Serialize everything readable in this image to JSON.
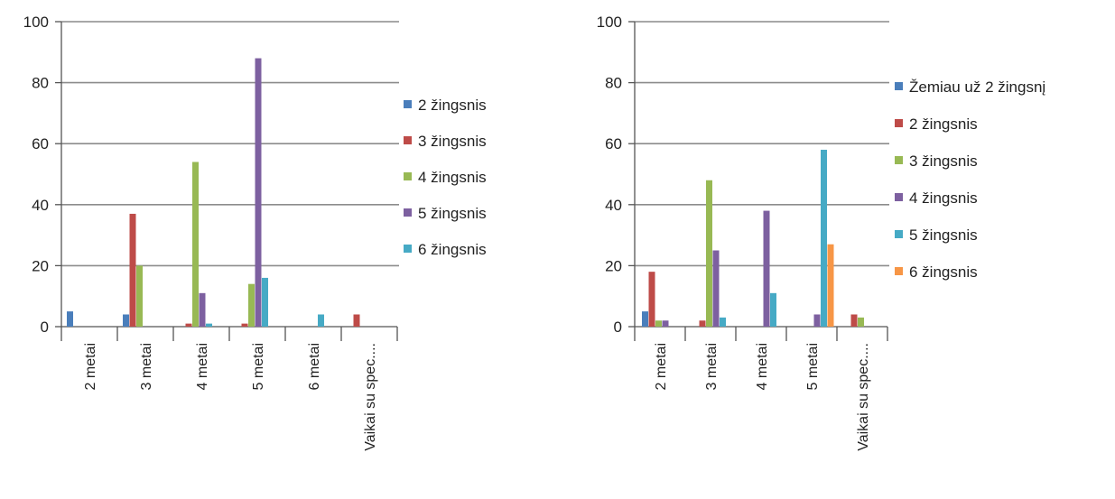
{
  "chart_data": [
    {
      "type": "bar",
      "categories": [
        "2 metai",
        "3 metai",
        "4 metai",
        "5 metai",
        "6 metai",
        "Vaikai su spec...."
      ],
      "y_ticks": [
        "0",
        "20",
        "40",
        "60",
        "80",
        "100"
      ],
      "ylim": [
        0,
        100
      ],
      "grid": true,
      "legend_position": "right",
      "series": [
        {
          "name": "2 žingsnis",
          "color": "#4a7ebb",
          "values": [
            5,
            4,
            0,
            0,
            0,
            0
          ]
        },
        {
          "name": "3 žingsnis",
          "color": "#be4b48",
          "values": [
            0,
            37,
            1,
            1,
            0,
            4
          ]
        },
        {
          "name": "4 žingsnis",
          "color": "#98b954",
          "values": [
            0,
            20,
            54,
            14,
            0,
            0
          ]
        },
        {
          "name": "5 žingsnis",
          "color": "#7d60a0",
          "values": [
            0,
            0,
            11,
            88,
            0,
            0
          ]
        },
        {
          "name": "6 žingsnis",
          "color": "#46aac5",
          "values": [
            0,
            0,
            1,
            16,
            4,
            0
          ]
        }
      ]
    },
    {
      "type": "bar",
      "categories": [
        "2 metai",
        "3 metai",
        "4 metai",
        "5 metai",
        "Vaikai su spec...."
      ],
      "y_ticks": [
        "0",
        "20",
        "40",
        "60",
        "80",
        "100"
      ],
      "ylim": [
        0,
        100
      ],
      "grid": true,
      "legend_position": "right",
      "series": [
        {
          "name": "Žemiau už 2 žingsnį",
          "color": "#4a7ebb",
          "values": [
            5,
            0,
            0,
            0,
            0
          ]
        },
        {
          "name": "2 žingsnis",
          "color": "#be4b48",
          "values": [
            18,
            2,
            0,
            0,
            4
          ]
        },
        {
          "name": "3 žingsnis",
          "color": "#98b954",
          "values": [
            2,
            48,
            0,
            0,
            3
          ]
        },
        {
          "name": "4 žingsnis",
          "color": "#7d60a0",
          "values": [
            2,
            25,
            38,
            4,
            0
          ]
        },
        {
          "name": "5 žingsnis",
          "color": "#46aac5",
          "values": [
            0,
            3,
            11,
            58,
            0
          ]
        },
        {
          "name": "6 žingsnis",
          "color": "#f79646",
          "values": [
            0,
            0,
            0,
            27,
            0
          ]
        }
      ]
    }
  ]
}
